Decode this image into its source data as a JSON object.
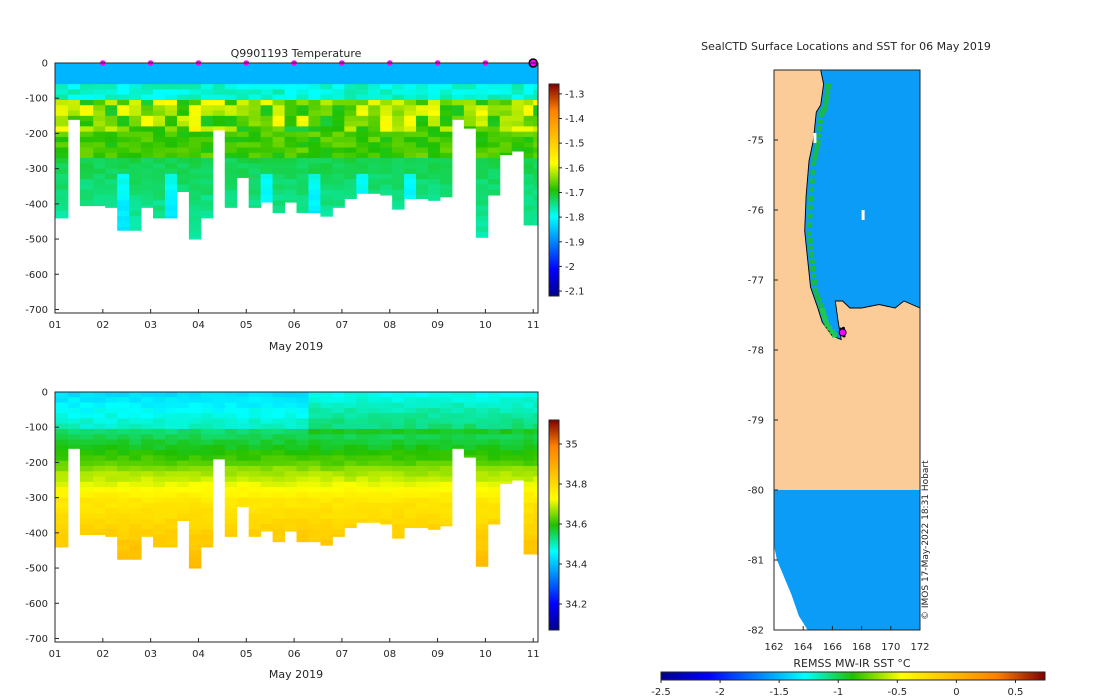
{
  "chart_data": [
    {
      "type": "heatmap",
      "title": "Q9901193  Temperature",
      "xlabel": "May 2019",
      "ylabel": "",
      "x_ticks": [
        "01",
        "02",
        "03",
        "04",
        "05",
        "06",
        "07",
        "08",
        "09",
        "10",
        "11"
      ],
      "y_ticks": [
        "0",
        "-100",
        "-200",
        "-300",
        "-400",
        "-500",
        "-600",
        "-700"
      ],
      "ylim": [
        -710,
        0
      ],
      "xlim": [
        1,
        11.1
      ],
      "colorbar": {
        "ticks": [
          "-1.3",
          "-1.4",
          "-1.5",
          "-1.6",
          "-1.7",
          "-1.8",
          "-1.9",
          "-2",
          "-2.1"
        ],
        "range": [
          -2.12,
          -1.26
        ]
      },
      "markers_x": [
        2,
        3,
        4,
        5,
        6,
        7,
        8,
        9,
        10
      ],
      "current_x": 11,
      "profiles": {
        "times": [
          1.0,
          1.27,
          1.52,
          1.8,
          2.05,
          2.3,
          2.55,
          2.8,
          3.05,
          3.3,
          3.55,
          3.8,
          4.05,
          4.3,
          4.55,
          4.8,
          5.05,
          5.3,
          5.55,
          5.8,
          6.05,
          6.3,
          6.55,
          6.8,
          7.05,
          7.3,
          7.55,
          7.8,
          8.05,
          8.3,
          8.55,
          8.8,
          9.05,
          9.3,
          9.55,
          9.8,
          10.05,
          10.3,
          10.55,
          10.8,
          11.0
        ],
        "max_depth": [
          440,
          160,
          405,
          405,
          410,
          475,
          475,
          410,
          440,
          440,
          365,
          500,
          440,
          190,
          410,
          325,
          410,
          395,
          425,
          395,
          425,
          425,
          435,
          410,
          385,
          370,
          370,
          375,
          415,
          385,
          385,
          390,
          380,
          160,
          185,
          495,
          375,
          260,
          250,
          460,
          460
        ]
      }
    },
    {
      "type": "heatmap",
      "title": "",
      "xlabel": "May 2019",
      "ylabel": "",
      "x_ticks": [
        "01",
        "02",
        "03",
        "04",
        "05",
        "06",
        "07",
        "08",
        "09",
        "10",
        "11"
      ],
      "y_ticks": [
        "0",
        "-100",
        "-200",
        "-300",
        "-400",
        "-500",
        "-600",
        "-700"
      ],
      "ylim": [
        -710,
        0
      ],
      "xlim": [
        1,
        11.1
      ],
      "colorbar": {
        "ticks": [
          "35",
          "34.8",
          "34.6",
          "34.4",
          "34.2"
        ],
        "range": [
          34.07,
          35.12
        ]
      },
      "profiles": {
        "same_as": "temperature"
      }
    },
    {
      "type": "heatmap",
      "title": "SealCTD Surface Locations and SST for 06 May 2019",
      "xlabel": "",
      "ylabel": "",
      "x_ticks": [
        "162",
        "164",
        "166",
        "168",
        "170",
        "172"
      ],
      "y_ticks": [
        "-75",
        "-76",
        "-77",
        "-78",
        "-79",
        "-80",
        "-81",
        "-82"
      ],
      "xlim": [
        162,
        172
      ],
      "ylim": [
        -82,
        -74
      ],
      "colorbar": {
        "label": "REMSS MW-IR SST °C",
        "ticks": [
          "-2.5",
          "-2",
          "-1.5",
          "-1",
          "-0.5",
          "0",
          "0.5"
        ],
        "range": [
          -2.5,
          0.75
        ]
      },
      "land_color": "#fccc98",
      "water_color": "#0a9cf6",
      "dominant_sst": -1.7,
      "seal_location": {
        "lon": 166.7,
        "lat": -77.75
      },
      "credit": "© IMOS 17-May-2022 18:31 Hobart"
    }
  ]
}
